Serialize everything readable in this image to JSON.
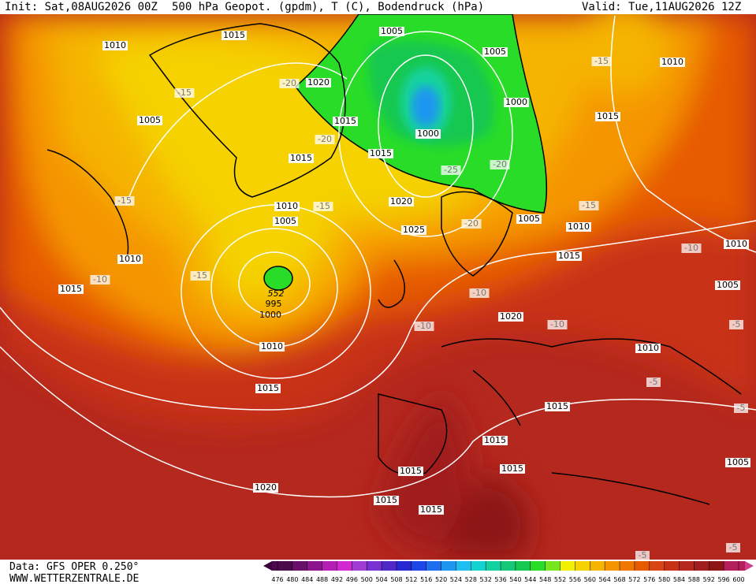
{
  "header": {
    "init": "Init: Sat,08AUG2026 00Z",
    "title": "500 hPa Geopot. (gpdm), T (C), Bodendruck (hPa)",
    "valid": "Valid: Tue,11AUG2026 12Z"
  },
  "footer": {
    "source": "Data: GFS OPER 0.250°",
    "site": "WWW.WETTERZENTRALE.DE"
  },
  "colorbar": {
    "ticks": [
      476,
      480,
      484,
      488,
      492,
      496,
      500,
      504,
      508,
      512,
      516,
      520,
      524,
      528,
      532,
      536,
      540,
      544,
      548,
      552,
      556,
      560,
      564,
      568,
      572,
      576,
      580,
      584,
      588,
      592,
      596,
      600
    ],
    "colors": [
      "#4b0a4b",
      "#6a0f6a",
      "#8c148c",
      "#b41eb4",
      "#d228d2",
      "#a03cd2",
      "#7832d2",
      "#5028c8",
      "#2828d2",
      "#1e46e6",
      "#1e6ef0",
      "#1e96f0",
      "#1ebef0",
      "#14d2d2",
      "#14d2a0",
      "#14c878",
      "#14c850",
      "#28dc28",
      "#78e61e",
      "#f0f000",
      "#f5d200",
      "#f5b400",
      "#f59600",
      "#f07800",
      "#e65a00",
      "#d74614",
      "#c83214",
      "#b4281e",
      "#a01e1e",
      "#8c1414",
      "#b41e5a"
    ]
  },
  "map": {
    "labels": [
      "1015",
      "1010",
      "1005",
      "1005",
      "1010",
      "-15",
      "1020",
      "-20",
      "-15",
      "1005",
      "1015",
      "1000",
      "1000",
      "1015",
      "-20",
      "1015",
      "1015",
      "-25",
      "-20",
      "-15",
      "1010",
      "-15",
      "1020",
      "-15",
      "1005",
      "1005",
      "1010",
      "-20",
      "1025",
      "1015",
      "-10",
      "1010",
      "1010",
      "-15",
      "-10",
      "552",
      "995",
      "1000",
      "1015",
      "1005",
      "-10",
      "1020",
      "-10",
      "-10",
      "-5",
      "1010",
      "1010",
      "-5",
      "1015",
      "1015",
      "-5",
      "1015",
      "1015",
      "1015",
      "1005",
      "1020",
      "1015",
      "1015",
      "-5",
      "-5"
    ]
  }
}
